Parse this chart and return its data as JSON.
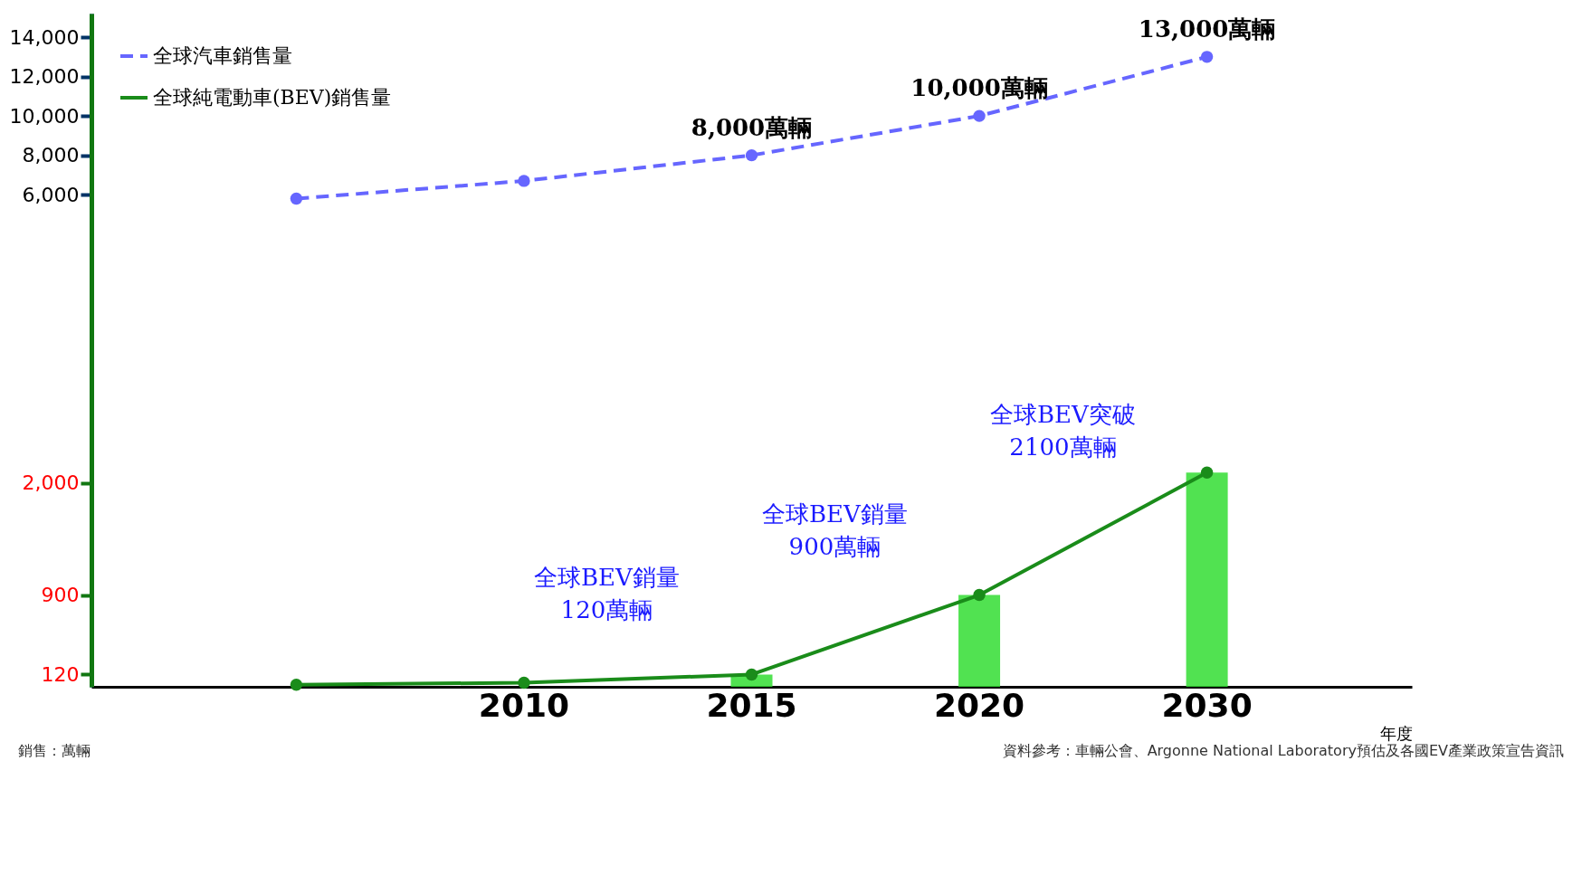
{
  "chart_data": {
    "type": "line",
    "xlabel": "年度",
    "categories": [
      null,
      "2010",
      "2015",
      "2020",
      "2030"
    ],
    "series": [
      {
        "name": "全球汽車銷售量",
        "color": "#6666ff",
        "line_style": "dashed",
        "values": [
          5800,
          6700,
          8000,
          10000,
          13000
        ],
        "value_labels": [
          null,
          null,
          "8,000萬輛",
          "10,000萬輛",
          "13,000萬輛"
        ]
      },
      {
        "name": "全球純電動車(BEV)銷售量",
        "color": "#1a8c1a",
        "line_style": "solid",
        "axis": "y2",
        "values": [
          20,
          40,
          120,
          900,
          2100
        ]
      },
      {
        "type": "bar",
        "color": "#33dd33",
        "axis": "y2",
        "values": [
          null,
          null,
          120,
          900,
          2100
        ]
      }
    ],
    "ylim": [
      -19000,
      15200
    ],
    "yticks": [
      {
        "value": 6000,
        "label": "6,000"
      },
      {
        "value": 8000,
        "label": "8,000"
      },
      {
        "value": 10000,
        "label": "10,000"
      },
      {
        "value": 12000,
        "label": "12,000"
      },
      {
        "value": 14000,
        "label": "14,000"
      }
    ],
    "y2lim": [
      0,
      6600
    ],
    "y2ticks": [
      120,
      900,
      {
        "value": 2000,
        "label": "2,000"
      }
    ],
    "marker": "circle",
    "legend": "top left",
    "annotations": [
      "全球BEV銷量\n120萬輛",
      "全球BEV銷量\n900萬輛",
      "全球BEV突破\n2100萬輛",
      "銷售：萬輛",
      "資料參考：車輛公會、Argonne National Laboratory預估及各國EV產業政策宣告資訊"
    ]
  }
}
